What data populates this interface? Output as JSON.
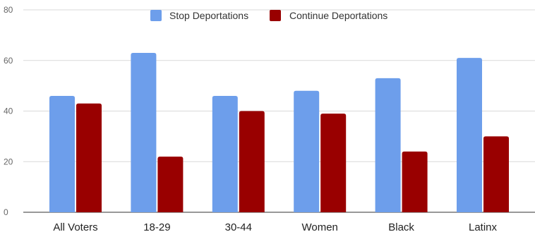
{
  "chart_data": {
    "type": "bar",
    "categories": [
      "All Voters",
      "18-29",
      "30-44",
      "Women",
      "Black",
      "Latinx"
    ],
    "series": [
      {
        "name": "Stop Deportations",
        "color": "#6d9eeb",
        "values": [
          46,
          63,
          46,
          48,
          53,
          61
        ]
      },
      {
        "name": "Continue Deportations",
        "color": "#990000",
        "values": [
          43,
          22,
          40,
          39,
          24,
          30
        ]
      }
    ],
    "ylim": [
      0,
      80
    ],
    "yticks": [
      0,
      20,
      40,
      60,
      80
    ],
    "grid": true,
    "legend_position": "top"
  }
}
